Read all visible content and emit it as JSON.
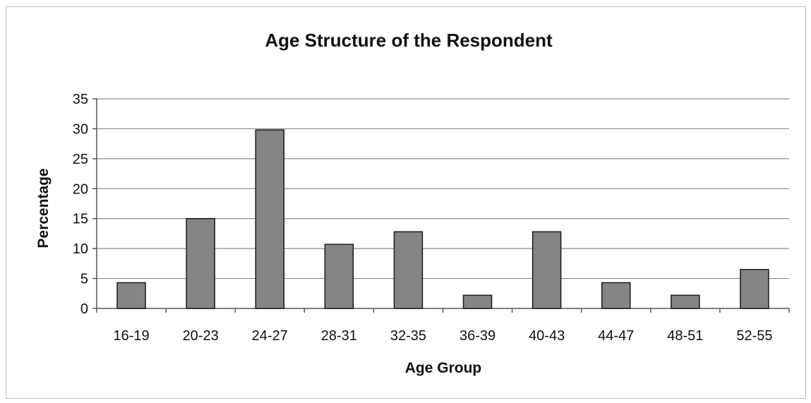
{
  "chart_data": {
    "type": "bar",
    "title": "Age Structure of the Respondent",
    "xlabel": "Age Group",
    "ylabel": "Percentage",
    "categories": [
      "16-19",
      "20-23",
      "24-27",
      "28-31",
      "32-35",
      "36-39",
      "40-43",
      "44-47",
      "48-51",
      "52-55"
    ],
    "values": [
      4.3,
      15,
      29.8,
      10.7,
      12.8,
      2.2,
      12.8,
      4.3,
      2.2,
      6.5
    ],
    "ylim": [
      0,
      35
    ],
    "yticks": [
      0,
      5,
      10,
      15,
      20,
      25,
      30,
      35
    ],
    "grid": true,
    "legend": "none",
    "colors": {
      "bar_fill": "#858585",
      "bar_stroke": "#1a1a1a",
      "gridline": "#8c8c8c",
      "axis": "#555555"
    }
  }
}
